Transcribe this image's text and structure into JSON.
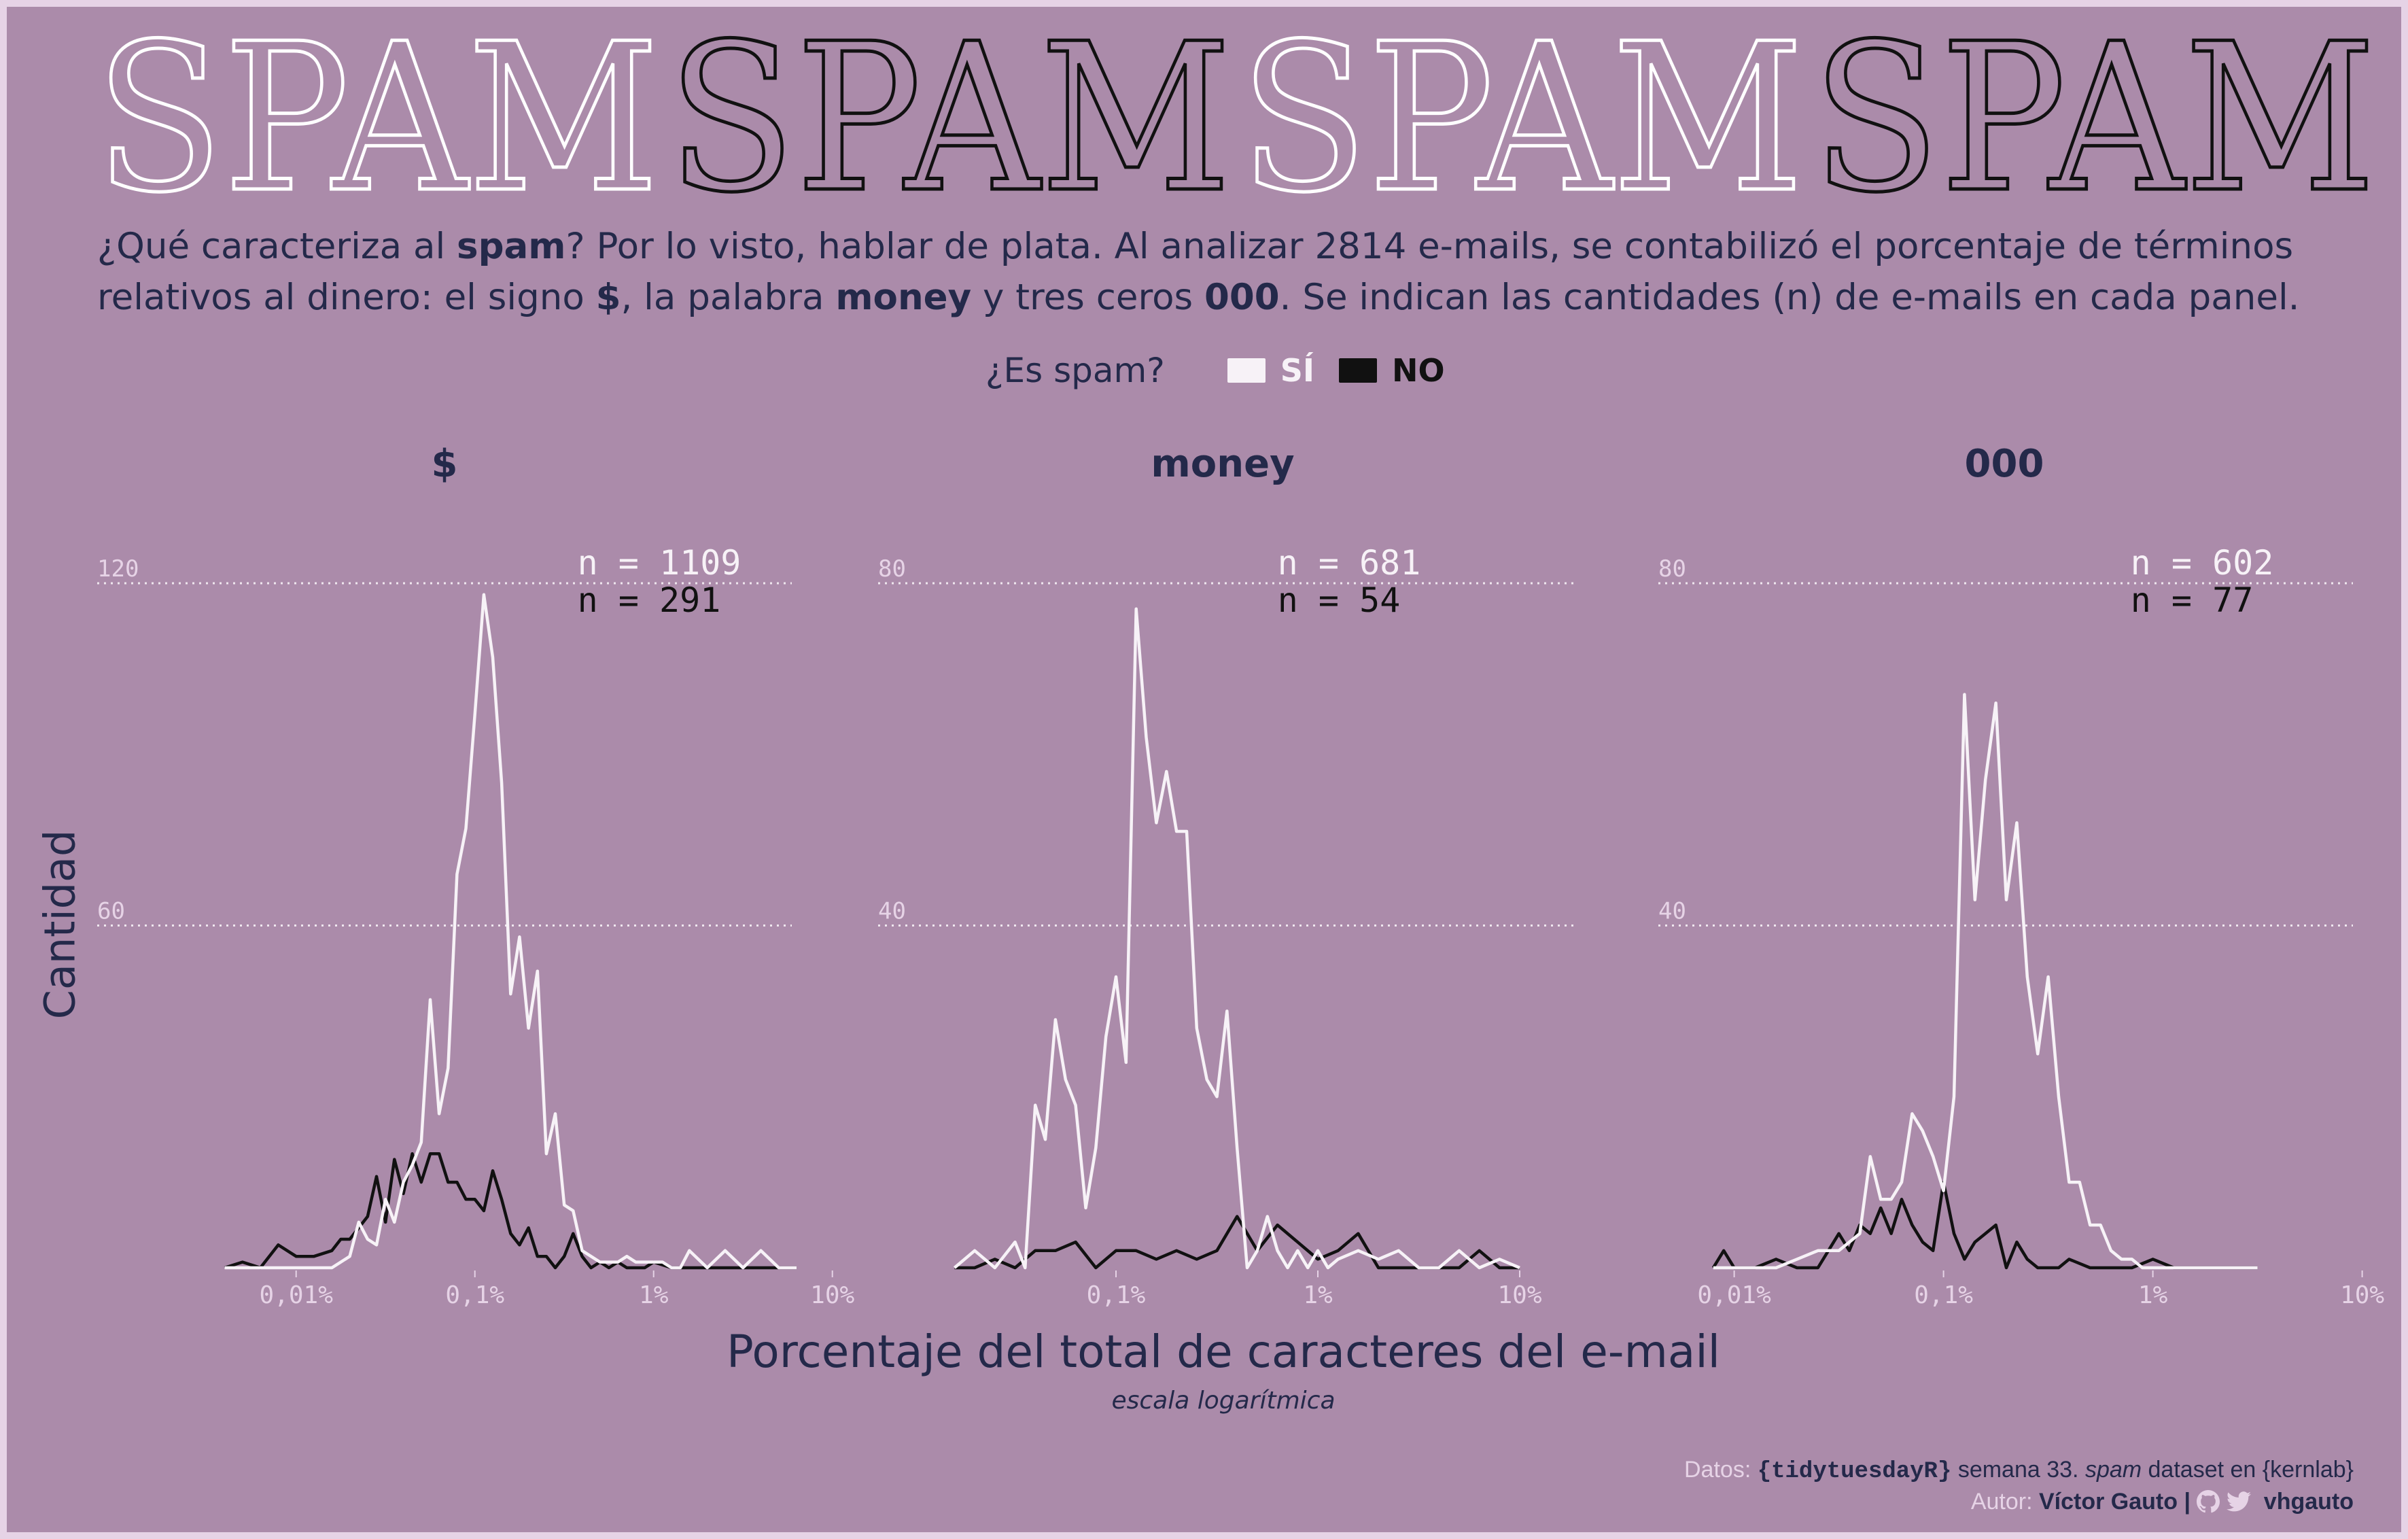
{
  "banner": {
    "words": [
      "SPAM",
      "SPAM",
      "SPAM",
      "SPAM"
    ],
    "colors": [
      "#FFFFFF",
      "#111111",
      "#FFFFFF",
      "#111111"
    ]
  },
  "subtitle": {
    "p1": "¿Qué caracteriza al ",
    "b1": "spam",
    "p2": "? Por lo visto, hablar de plata.  Al analizar 2814 e-mails, se contabilizó el porcentaje de términos relativos al dinero: el signo ",
    "b2": "$",
    "p3": ", la palabra ",
    "b3": "money",
    "p4": " y tres ceros ",
    "b4": "000",
    "p5": ". Se indican las cantidades (n) de e-mails en cada panel."
  },
  "legend": {
    "title": "¿Es spam?",
    "si": "SÍ",
    "no": "NO"
  },
  "axes": {
    "ylabel": "Cantidad",
    "xlabel": "Porcentaje del total de caracteres del e-mail",
    "xnote": "escala logarítmica"
  },
  "colors": {
    "background": "#AB8BAA",
    "frame": "#E6D3E6",
    "text": "#24294A",
    "si": "#F7F2F7",
    "no": "#111111"
  },
  "caption": {
    "line1_a": "Datos: ",
    "line1_pkg": "{tidytuesdayR}",
    "line1_b": " semana 33. ",
    "line1_it": "spam",
    "line1_c": " dataset en {kernlab}",
    "line2_a": "Autor: ",
    "line2_author": "Víctor Gauto",
    "line2_sep": "  |  ",
    "line2_handle": "vhgauto",
    "icons": [
      "github-icon",
      "twitter-icon"
    ]
  },
  "chart_data": [
    {
      "type": "line",
      "title": "$",
      "xscale": "log",
      "xticks": [
        "0,01%",
        "0,1%",
        "1%",
        "10%"
      ],
      "yticks": [
        "60",
        "120"
      ],
      "ylim": [
        0,
        120
      ],
      "n_si": "n = 1109",
      "n_no": "n = 291",
      "series": [
        {
          "name": "SÍ",
          "x": [
            -2.4,
            -2.3,
            -2.2,
            -2.1,
            -2.0,
            -1.9,
            -1.8,
            -1.75,
            -1.7,
            -1.65,
            -1.6,
            -1.55,
            -1.5,
            -1.45,
            -1.4,
            -1.35,
            -1.3,
            -1.25,
            -1.2,
            -1.15,
            -1.1,
            -1.05,
            -1.0,
            -0.95,
            -0.9,
            -0.85,
            -0.8,
            -0.75,
            -0.7,
            -0.65,
            -0.6,
            -0.55,
            -0.5,
            -0.45,
            -0.4,
            -0.35,
            -0.3,
            -0.25,
            -0.2,
            -0.15,
            -0.1,
            -0.05,
            0.0,
            0.05,
            0.1,
            0.15,
            0.2,
            0.3,
            0.4,
            0.5,
            0.6,
            0.7,
            0.8
          ],
          "y": [
            0,
            0,
            0,
            0,
            0,
            0,
            0,
            1,
            2,
            8,
            5,
            4,
            12,
            8,
            15,
            18,
            22,
            47,
            27,
            35,
            69,
            77,
            97,
            118,
            107,
            85,
            48,
            58,
            42,
            52,
            20,
            27,
            11,
            10,
            3,
            2,
            1,
            1,
            1,
            2,
            1,
            1,
            1,
            1,
            0,
            0,
            3,
            0,
            3,
            0,
            3,
            0,
            0
          ]
        },
        {
          "name": "NO",
          "x": [
            -2.4,
            -2.3,
            -2.2,
            -2.1,
            -2.0,
            -1.9,
            -1.8,
            -1.75,
            -1.7,
            -1.65,
            -1.6,
            -1.55,
            -1.5,
            -1.45,
            -1.4,
            -1.35,
            -1.3,
            -1.25,
            -1.2,
            -1.15,
            -1.1,
            -1.05,
            -1.0,
            -0.95,
            -0.9,
            -0.85,
            -0.8,
            -0.75,
            -0.7,
            -0.65,
            -0.6,
            -0.55,
            -0.5,
            -0.45,
            -0.4,
            -0.35,
            -0.3,
            -0.25,
            -0.2,
            -0.15,
            -0.1,
            -0.05,
            0.0,
            0.1,
            0.2,
            0.3,
            0.4,
            0.5,
            0.6,
            0.7,
            0.8
          ],
          "y": [
            0,
            1,
            0,
            4,
            2,
            2,
            3,
            5,
            5,
            7,
            9,
            16,
            8,
            19,
            13,
            20,
            15,
            20,
            20,
            15,
            15,
            12,
            12,
            10,
            17,
            12,
            6,
            4,
            7,
            2,
            2,
            0,
            2,
            6,
            2,
            0,
            1,
            0,
            1,
            0,
            0,
            0,
            1,
            0,
            0,
            0,
            0,
            0,
            0,
            0,
            0
          ]
        }
      ]
    },
    {
      "type": "line",
      "title": "money",
      "xscale": "log",
      "xticks": [
        "0,1%",
        "1%",
        "10%"
      ],
      "yticks": [
        "40",
        "80"
      ],
      "ylim": [
        0,
        80
      ],
      "n_si": "n = 681",
      "n_no": "n = 54",
      "series": [
        {
          "name": "SÍ",
          "x": [
            -1.8,
            -1.7,
            -1.6,
            -1.5,
            -1.45,
            -1.4,
            -1.35,
            -1.3,
            -1.25,
            -1.2,
            -1.15,
            -1.1,
            -1.05,
            -1.0,
            -0.95,
            -0.9,
            -0.85,
            -0.8,
            -0.75,
            -0.7,
            -0.65,
            -0.6,
            -0.55,
            -0.5,
            -0.45,
            -0.4,
            -0.35,
            -0.3,
            -0.25,
            -0.2,
            -0.15,
            -0.1,
            -0.05,
            0.0,
            0.05,
            0.1,
            0.2,
            0.3,
            0.4,
            0.5,
            0.6,
            0.7,
            0.8,
            0.9,
            1.0
          ],
          "y": [
            0,
            2,
            0,
            3,
            0,
            19,
            15,
            29,
            22,
            19,
            7,
            14,
            27,
            34,
            24,
            77,
            62,
            52,
            58,
            51,
            51,
            28,
            22,
            20,
            30,
            14,
            0,
            2,
            6,
            2,
            0,
            2,
            0,
            2,
            0,
            1,
            2,
            1,
            2,
            0,
            0,
            2,
            0,
            1,
            0
          ]
        },
        {
          "name": "NO",
          "x": [
            -1.8,
            -1.7,
            -1.6,
            -1.5,
            -1.4,
            -1.3,
            -1.2,
            -1.1,
            -1.0,
            -0.9,
            -0.8,
            -0.7,
            -0.6,
            -0.5,
            -0.4,
            -0.3,
            -0.2,
            -0.1,
            0.0,
            0.1,
            0.2,
            0.3,
            0.4,
            0.5,
            0.6,
            0.7,
            0.8,
            0.9,
            1.0
          ],
          "y": [
            0,
            0,
            1,
            0,
            2,
            2,
            3,
            0,
            2,
            2,
            1,
            2,
            1,
            2,
            6,
            2,
            5,
            3,
            1,
            2,
            4,
            0,
            0,
            0,
            0,
            0,
            2,
            0,
            0
          ]
        }
      ]
    },
    {
      "type": "line",
      "title": "000",
      "xscale": "log",
      "xticks": [
        "0,01%",
        "0,1%",
        "1%",
        "10%"
      ],
      "yticks": [
        "40",
        "80"
      ],
      "ylim": [
        0,
        80
      ],
      "n_si": "n = 602",
      "n_no": "n = 77",
      "series": [
        {
          "name": "SÍ",
          "x": [
            -2.1,
            -2.0,
            -1.9,
            -1.8,
            -1.7,
            -1.6,
            -1.5,
            -1.4,
            -1.35,
            -1.3,
            -1.25,
            -1.2,
            -1.15,
            -1.1,
            -1.05,
            -1.0,
            -0.95,
            -0.9,
            -0.85,
            -0.8,
            -0.75,
            -0.7,
            -0.65,
            -0.6,
            -0.55,
            -0.5,
            -0.45,
            -0.4,
            -0.35,
            -0.3,
            -0.25,
            -0.2,
            -0.15,
            -0.1,
            -0.05,
            0.0,
            0.05,
            0.1,
            0.15,
            0.2,
            0.3,
            0.4,
            0.5
          ],
          "y": [
            0,
            0,
            0,
            0,
            1,
            2,
            2,
            4,
            13,
            8,
            8,
            10,
            18,
            16,
            13,
            9,
            20,
            67,
            43,
            57,
            66,
            43,
            52,
            34,
            25,
            34,
            20,
            10,
            10,
            5,
            5,
            2,
            1,
            1,
            0,
            0,
            0,
            0,
            0,
            0,
            0,
            0,
            0
          ]
        },
        {
          "name": "NO",
          "x": [
            -2.1,
            -2.05,
            -2.0,
            -1.9,
            -1.8,
            -1.7,
            -1.6,
            -1.5,
            -1.45,
            -1.4,
            -1.35,
            -1.3,
            -1.25,
            -1.2,
            -1.15,
            -1.1,
            -1.05,
            -1.0,
            -0.95,
            -0.9,
            -0.85,
            -0.8,
            -0.75,
            -0.7,
            -0.65,
            -0.6,
            -0.55,
            -0.5,
            -0.45,
            -0.4,
            -0.3,
            -0.2,
            -0.1,
            0.0,
            0.1,
            0.2,
            0.3,
            0.4,
            0.5
          ],
          "y": [
            0,
            2,
            0,
            0,
            1,
            0,
            0,
            4,
            2,
            5,
            4,
            7,
            4,
            8,
            5,
            3,
            2,
            10,
            4,
            1,
            3,
            4,
            5,
            0,
            3,
            1,
            0,
            0,
            0,
            1,
            0,
            0,
            0,
            1,
            0,
            0,
            0,
            0,
            0
          ]
        }
      ]
    }
  ]
}
